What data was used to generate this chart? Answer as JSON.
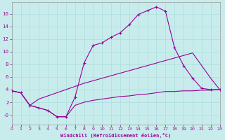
{
  "xlabel": "Windchill (Refroidissement éolien,°C)",
  "bg_color": "#c8ecec",
  "line_color": "#990099",
  "grid_color": "#aadddd",
  "x_ticks": [
    0,
    1,
    2,
    3,
    4,
    5,
    6,
    7,
    8,
    9,
    10,
    11,
    12,
    13,
    14,
    15,
    16,
    17,
    18,
    19,
    20,
    21,
    22,
    23
  ],
  "y_ticks": [
    0,
    2,
    4,
    6,
    8,
    10,
    12,
    14,
    16
  ],
  "y_tick_labels": [
    "-0",
    "2",
    "4",
    "6",
    "8",
    "10",
    "12",
    "14",
    "16"
  ],
  "ylim": [
    -1.5,
    17.8
  ],
  "xlim": [
    0,
    23
  ],
  "line1_x": [
    0,
    1,
    2,
    3,
    4,
    5,
    6,
    7,
    8,
    9,
    10,
    11,
    12,
    13,
    14,
    15,
    16,
    17,
    18,
    19,
    20,
    21,
    22,
    23
  ],
  "line1_y": [
    3.8,
    3.5,
    1.5,
    1.1,
    0.7,
    -0.3,
    -0.3,
    2.8,
    8.2,
    11.0,
    11.4,
    12.3,
    13.0,
    14.3,
    15.9,
    16.5,
    17.1,
    16.4,
    10.6,
    7.8,
    5.8,
    4.2,
    4.0,
    4.0
  ],
  "line2_x": [
    0,
    1,
    2,
    3,
    4,
    5,
    6,
    7,
    8,
    9,
    10,
    11,
    12,
    13,
    14,
    15,
    16,
    17,
    18,
    19,
    20,
    21,
    22,
    23
  ],
  "line2_y": [
    3.8,
    3.5,
    1.5,
    2.5,
    3.0,
    3.5,
    4.0,
    4.5,
    5.0,
    5.4,
    5.8,
    6.2,
    6.6,
    7.0,
    7.4,
    7.8,
    8.2,
    8.6,
    9.0,
    9.4,
    9.8,
    7.8,
    5.8,
    4.0
  ],
  "line3_x": [
    0,
    1,
    2,
    3,
    4,
    5,
    6,
    7,
    8,
    9,
    10,
    11,
    12,
    13,
    14,
    15,
    16,
    17,
    18,
    19,
    20,
    21,
    22,
    23
  ],
  "line3_y": [
    3.8,
    3.5,
    1.5,
    1.1,
    0.7,
    -0.3,
    -0.3,
    1.5,
    2.0,
    2.3,
    2.5,
    2.7,
    2.9,
    3.0,
    3.2,
    3.3,
    3.5,
    3.7,
    3.7,
    3.8,
    3.8,
    3.9,
    3.9,
    4.0
  ]
}
